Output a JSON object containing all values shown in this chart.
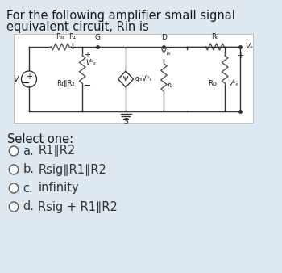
{
  "title_line1": "For the following amplifier small signal",
  "title_line2": "equivalent circuit, Rin is",
  "bg_color": "#dde8f0",
  "circuit_bg": "#ffffff",
  "select_one": "Select one:",
  "options": [
    {
      "label": "a.",
      "text": "R1∥R2"
    },
    {
      "label": "b.",
      "text": "Rsig∥R1∥R2"
    },
    {
      "label": "c.",
      "text": "infinity"
    },
    {
      "label": "d.",
      "text": "Rsig + R1∥R2"
    }
  ],
  "text_color": "#1a1a1a",
  "option_color": "#333333",
  "circle_color": "#555555",
  "circuit_line_color": "#333333",
  "resistor_color": "#555555",
  "font_size_title": 10.5,
  "font_size_options": 10.5,
  "font_size_select": 10.5
}
